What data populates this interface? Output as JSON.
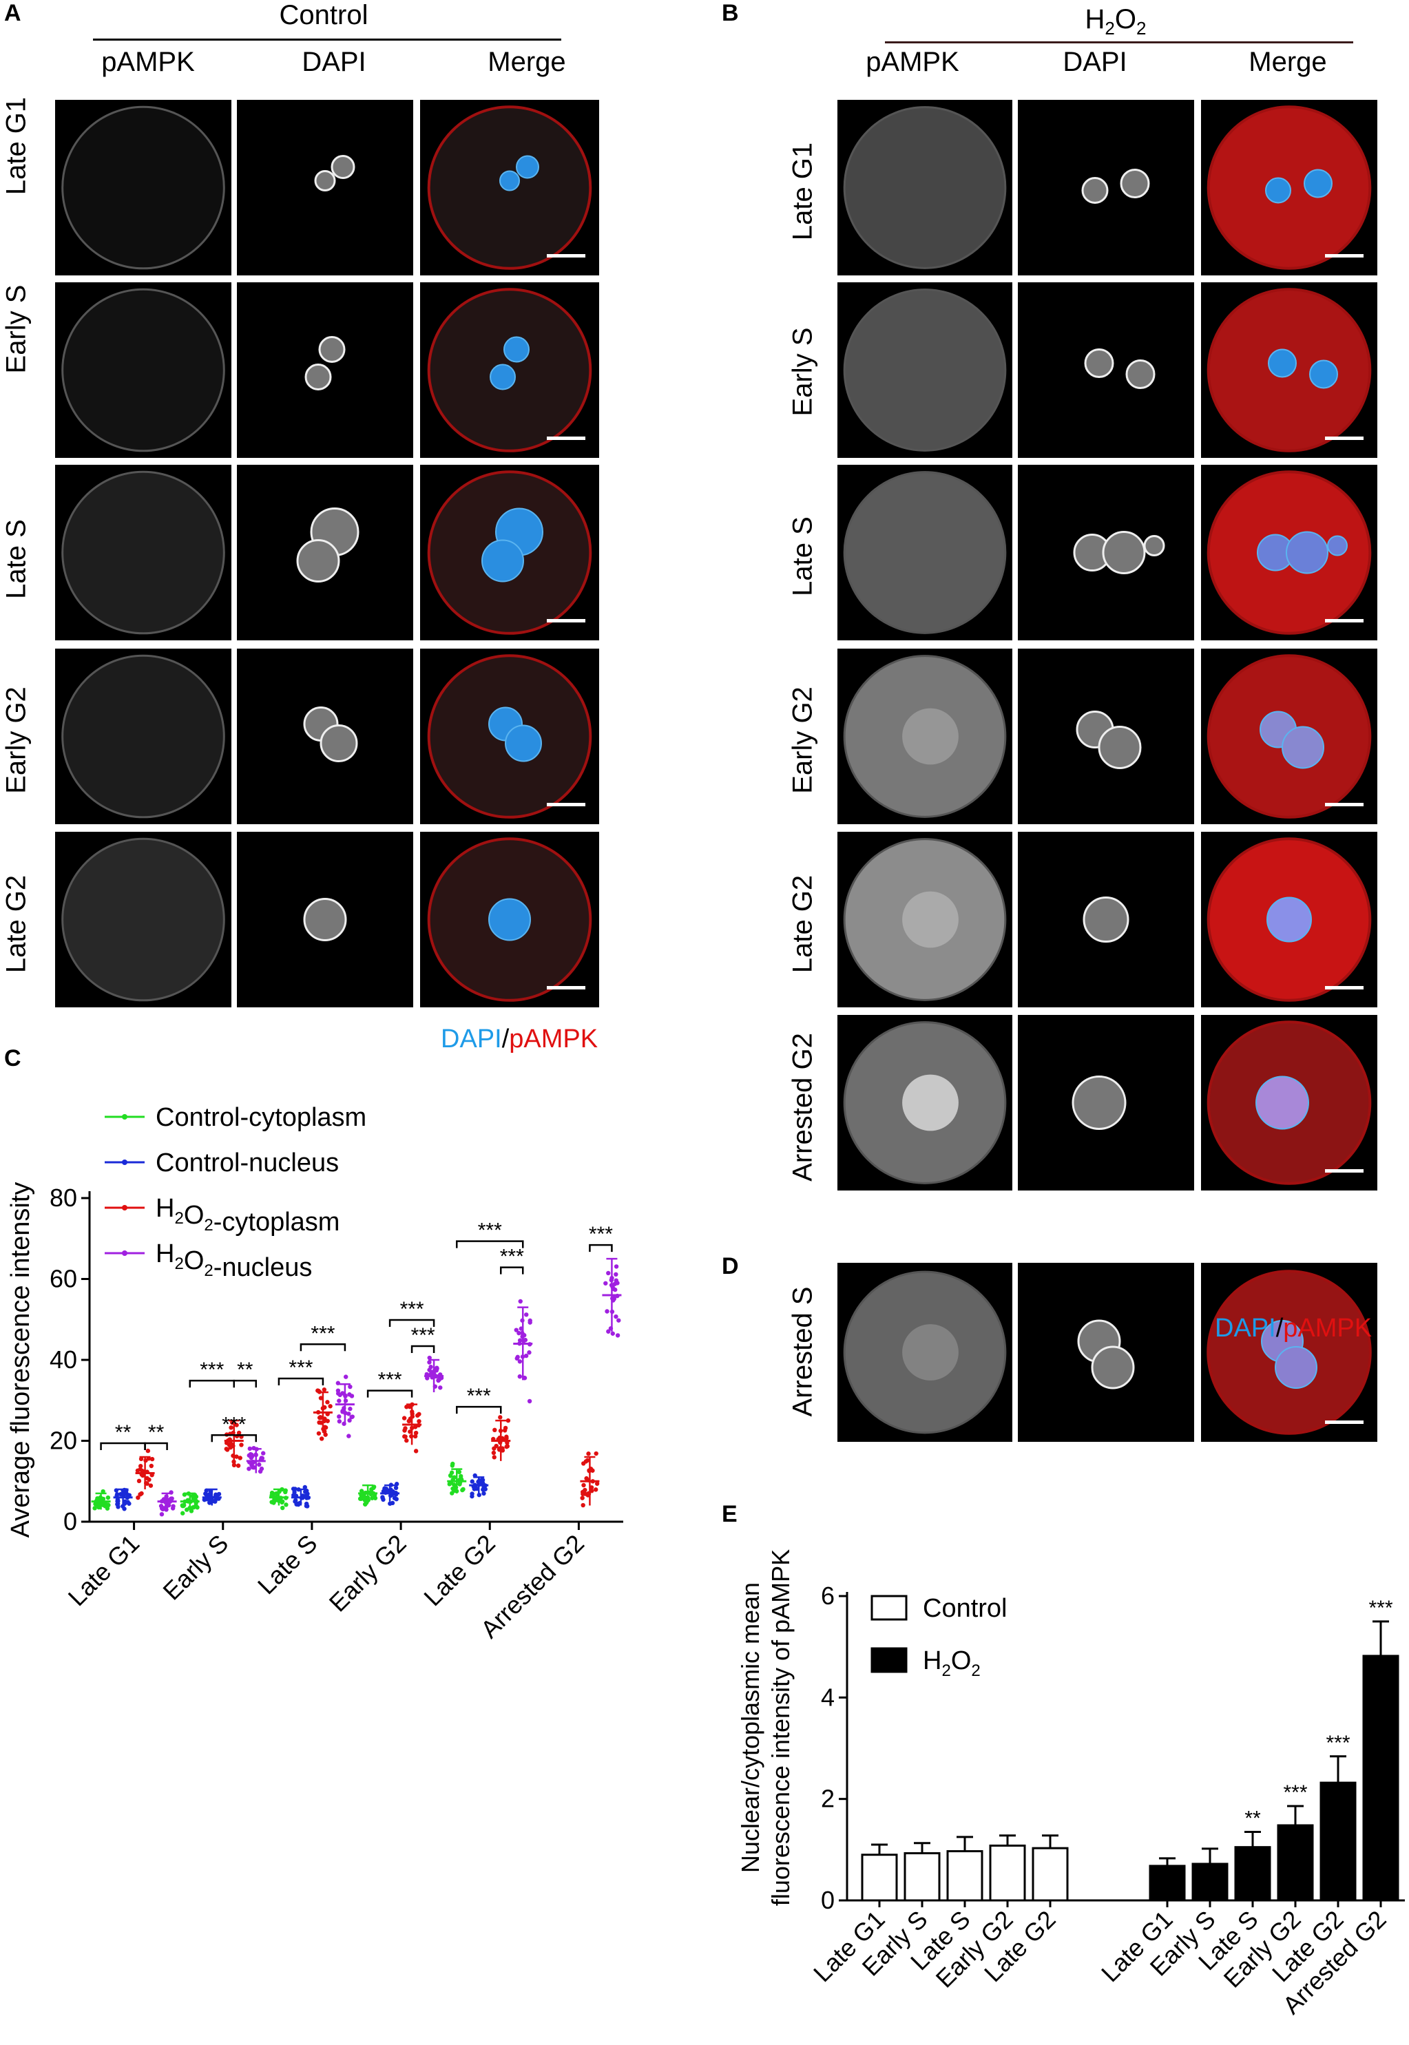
{
  "panel_labels": {
    "a": "A",
    "b": "B",
    "c": "C",
    "d": "D",
    "e": "E"
  },
  "panel_a": {
    "group": "Control",
    "columns": [
      "pAMPK",
      "DAPI",
      "Merge"
    ],
    "rows": [
      "Late G1",
      "Early S",
      "Late S",
      "Early G2",
      "Late G2"
    ],
    "legend_dapi": "DAPI",
    "legend_sep": "/",
    "legend_pampk": "pAMPK"
  },
  "panel_b": {
    "group_main": "H",
    "group_sub": "2",
    "group_mid": "O",
    "group_sub2": "2",
    "columns": [
      "pAMPK",
      "DAPI",
      "Merge"
    ],
    "rows": [
      "Late G1",
      "Early S",
      "Late S",
      "Early G2",
      "Late G2",
      "Arrested G2"
    ]
  },
  "panel_d": {
    "row": "Arrested S",
    "legend_dapi": "DAPI",
    "legend_sep": "/",
    "legend_pampk": "pAMPK"
  },
  "colors": {
    "control_cyto": "#22dd22",
    "control_nuc": "#1a2ad8",
    "h2o2_cyto": "#e01010",
    "h2o2_nuc": "#a020e0",
    "merge_red": "#c01818",
    "dapi_blue": "#2a8ee0"
  },
  "chart_data": [
    {
      "panel": "C",
      "type": "scatter",
      "ylabel": "Average fluorescence intensity",
      "ylim": [
        0,
        80
      ],
      "yticks": [
        0,
        20,
        40,
        60,
        80
      ],
      "categories": [
        "Late G1",
        "Early S",
        "Late S",
        "Early G2",
        "Late G2",
        "Arrested G2"
      ],
      "legend": [
        "Control-cytoplasm",
        "Control-nucleus",
        "H2O2-cytoplasm",
        "H2O2-nucleus"
      ],
      "legend_display": [
        {
          "main": "Control-cytoplasm"
        },
        {
          "main": "Control-nucleus"
        },
        {
          "pre": "H",
          "sub": "2",
          "mid": "O",
          "sub2": "2",
          "post": "-cytoplasm"
        },
        {
          "pre": "H",
          "sub": "2",
          "mid": "O",
          "sub2": "2",
          "post": "-nucleus"
        }
      ],
      "series": [
        {
          "name": "Control-cytoplasm",
          "means": [
            5,
            5,
            6,
            7,
            10,
            null
          ],
          "sd": [
            2,
            2,
            2,
            2,
            3,
            null
          ]
        },
        {
          "name": "Control-nucleus",
          "means": [
            6,
            6,
            6,
            7,
            9,
            null
          ],
          "sd": [
            2,
            2,
            2,
            2,
            2,
            null
          ]
        },
        {
          "name": "H2O2-cytoplasm",
          "means": [
            12,
            20,
            27,
            24,
            20,
            10
          ],
          "sd": [
            4,
            5,
            5,
            5,
            5,
            6
          ]
        },
        {
          "name": "H2O2-nucleus",
          "means": [
            5,
            15,
            29,
            36,
            44,
            56
          ],
          "sd": [
            2,
            3,
            5,
            4,
            9,
            9
          ]
        }
      ],
      "significance": [
        {
          "cat": 0,
          "from": 0,
          "to": 2,
          "label": "**",
          "level": 1
        },
        {
          "cat": 0,
          "from": 2,
          "to": 3,
          "label": "**",
          "level": 1
        },
        {
          "cat": 1,
          "from": 0,
          "to": 2,
          "label": "***",
          "level": 2
        },
        {
          "cat": 1,
          "from": 2,
          "to": 3,
          "label": "**",
          "level": 2
        },
        {
          "cat": 1,
          "from": 1,
          "to": 3,
          "label": "***",
          "level": 1
        },
        {
          "cat": 2,
          "from": 0,
          "to": 2,
          "label": "***",
          "level": 1
        },
        {
          "cat": 2,
          "from": 1,
          "to": 3,
          "label": "***",
          "level": 2
        },
        {
          "cat": 3,
          "from": 0,
          "to": 2,
          "label": "***",
          "level": 1
        },
        {
          "cat": 3,
          "from": 2,
          "to": 3,
          "label": "***",
          "level": 1
        },
        {
          "cat": 3,
          "from": 1,
          "to": 3,
          "label": "***",
          "level": 2
        },
        {
          "cat": 4,
          "from": 0,
          "to": 2,
          "label": "***",
          "level": 1
        },
        {
          "cat": 4,
          "from": 2,
          "to": 3,
          "label": "***",
          "level": 2
        },
        {
          "cat": 4,
          "from": 0,
          "to": 3,
          "label": "***",
          "level": 3
        },
        {
          "cat": 5,
          "from": 2,
          "to": 3,
          "label": "***",
          "level": 1
        }
      ]
    },
    {
      "panel": "E",
      "type": "bar",
      "ylabel_line1": "Nuclear/cytoplasmic mean",
      "ylabel_line2": "fluorescence intensity of pAMPK",
      "ylim": [
        0,
        6
      ],
      "yticks": [
        0,
        2,
        4,
        6
      ],
      "legend": [
        "Control",
        "H2O2"
      ],
      "series": [
        {
          "name": "Control",
          "categories": [
            "Late G1",
            "Early S",
            "Late S",
            "Early G2",
            "Late G2"
          ],
          "values": [
            0.9,
            0.93,
            0.97,
            1.08,
            1.03
          ],
          "err": [
            0.2,
            0.2,
            0.28,
            0.2,
            0.25
          ],
          "sig": [
            "",
            "",
            "",
            "",
            ""
          ]
        },
        {
          "name": "H2O2",
          "categories": [
            "Late G1",
            "Early S",
            "Late S",
            "Early G2",
            "Late G2",
            "Arrested G2"
          ],
          "values": [
            0.68,
            0.72,
            1.05,
            1.48,
            2.32,
            4.82
          ],
          "err": [
            0.15,
            0.3,
            0.3,
            0.38,
            0.52,
            0.68
          ],
          "sig": [
            "",
            "",
            "**",
            "***",
            "***",
            "***"
          ]
        }
      ]
    }
  ]
}
